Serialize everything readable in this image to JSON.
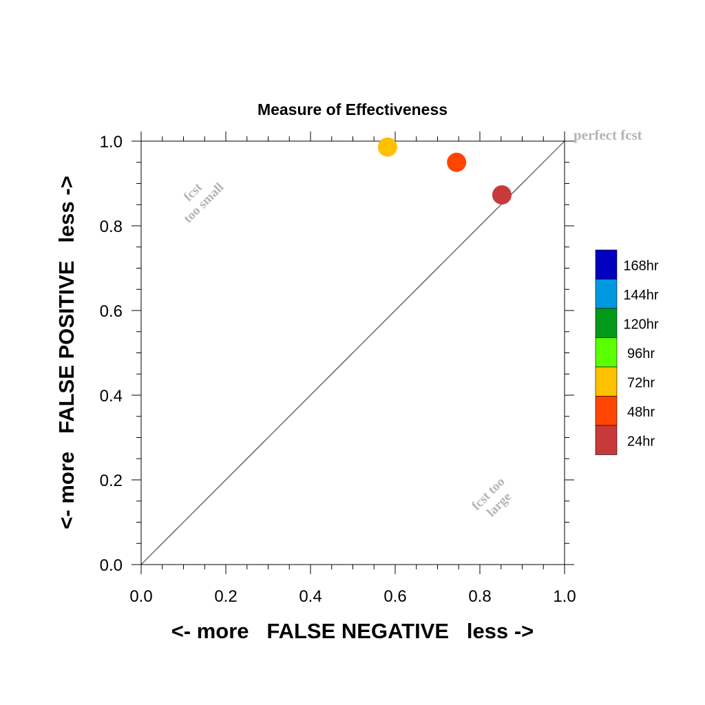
{
  "chart_data": {
    "type": "scatter",
    "title": "Measure of Effectiveness",
    "xlabel": "<- more   FALSE NEGATIVE   less ->",
    "ylabel": "<- more   FALSE POSITIVE   less ->",
    "xlim": [
      0,
      1
    ],
    "ylim": [
      0,
      1
    ],
    "xticks": [
      "0.0",
      "0.2",
      "0.4",
      "0.6",
      "0.8",
      "1.0"
    ],
    "yticks": [
      "0.0",
      "0.2",
      "0.4",
      "0.6",
      "0.8",
      "1.0"
    ],
    "grid": false,
    "legend_position": "right",
    "diagonal_line": true,
    "series": [
      {
        "name": "24hr",
        "color": "#c83a3a",
        "x": [
          0.852
        ],
        "y": [
          0.873
        ]
      },
      {
        "name": "48hr",
        "color": "#ff4500",
        "x": [
          0.745
        ],
        "y": [
          0.95
        ]
      },
      {
        "name": "72hr",
        "color": "#ffc000",
        "x": [
          0.582
        ],
        "y": [
          0.986
        ]
      }
    ],
    "legend": [
      {
        "label": "168hr",
        "color": "#0000c0"
      },
      {
        "label": "144hr",
        "color": "#0098e0"
      },
      {
        "label": "120hr",
        "color": "#009a18"
      },
      {
        "label": "96hr",
        "color": "#5aff00"
      },
      {
        "label": "72hr",
        "color": "#ffc000"
      },
      {
        "label": "48hr",
        "color": "#ff4500"
      },
      {
        "label": "24hr",
        "color": "#c83a3a"
      }
    ],
    "annotations": {
      "perfect": "perfect fcst",
      "too_small_line1": "fcst",
      "too_small_line2": "too small",
      "too_large_line1": "fcst too",
      "too_large_line2": "large"
    },
    "annotation_color": "#b4b4b4"
  }
}
